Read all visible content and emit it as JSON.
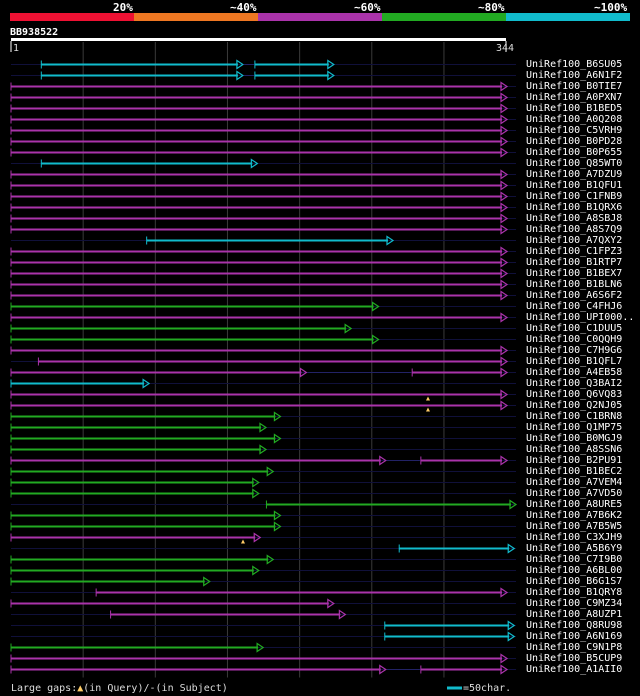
{
  "legend": {
    "scale_labels": [
      "20%",
      "~40%",
      "~60%",
      "~80%",
      "~100%"
    ],
    "scale_colors": [
      "#ee1133",
      "#ee7722",
      "#aa33aa",
      "#22aa22",
      "#11bbcc"
    ]
  },
  "query": {
    "id": "BB938522",
    "start": "1",
    "end": "344",
    "length": 344
  },
  "hits": [
    {
      "name": "UniRef100_B6SU05",
      "color": "#11bbcc",
      "segs": [
        [
          22,
          161
        ],
        [
          170,
          224
        ]
      ]
    },
    {
      "name": "UniRef100_A6N1F2",
      "color": "#11bbcc",
      "segs": [
        [
          22,
          161
        ],
        [
          170,
          224
        ]
      ]
    },
    {
      "name": "UniRef100_B0TIE7",
      "color": "#aa33aa",
      "segs": [
        [
          1,
          344
        ]
      ]
    },
    {
      "name": "UniRef100_A0PXN7",
      "color": "#aa33aa",
      "segs": [
        [
          1,
          344
        ]
      ]
    },
    {
      "name": "UniRef100_B1BED5",
      "color": "#aa33aa",
      "segs": [
        [
          1,
          344
        ]
      ]
    },
    {
      "name": "UniRef100_A0Q208",
      "color": "#aa33aa",
      "segs": [
        [
          1,
          344
        ]
      ]
    },
    {
      "name": "UniRef100_C5VRH9",
      "color": "#aa33aa",
      "segs": [
        [
          1,
          344
        ]
      ]
    },
    {
      "name": "UniRef100_B0PD28",
      "color": "#aa33aa",
      "segs": [
        [
          1,
          344
        ]
      ]
    },
    {
      "name": "UniRef100_B0P655",
      "color": "#aa33aa",
      "segs": [
        [
          1,
          344
        ]
      ]
    },
    {
      "name": "UniRef100_Q85WT0",
      "color": "#11bbcc",
      "segs": [
        [
          22,
          171
        ]
      ]
    },
    {
      "name": "UniRef100_A7DZU9",
      "color": "#aa33aa",
      "segs": [
        [
          1,
          344
        ]
      ]
    },
    {
      "name": "UniRef100_B1QFU1",
      "color": "#aa33aa",
      "segs": [
        [
          1,
          344
        ]
      ]
    },
    {
      "name": "UniRef100_C1FNB9",
      "color": "#aa33aa",
      "segs": [
        [
          1,
          344
        ]
      ]
    },
    {
      "name": "UniRef100_B1QRX6",
      "color": "#aa33aa",
      "segs": [
        [
          1,
          344
        ]
      ]
    },
    {
      "name": "UniRef100_A8SBJ8",
      "color": "#aa33aa",
      "segs": [
        [
          1,
          344
        ]
      ]
    },
    {
      "name": "UniRef100_A8S7Q9",
      "color": "#aa33aa",
      "segs": [
        [
          1,
          344
        ]
      ]
    },
    {
      "name": "UniRef100_A7QXY2",
      "color": "#11bbcc",
      "segs": [
        [
          1,
          344
        ]
      ],
      "drawSegs": [
        [
          95,
          265
        ]
      ]
    },
    {
      "name": "UniRef100_C1FPZ3",
      "color": "#aa33aa",
      "segs": [
        [
          1,
          344
        ]
      ]
    },
    {
      "name": "UniRef100_B1RTP7",
      "color": "#aa33aa",
      "segs": [
        [
          1,
          344
        ]
      ]
    },
    {
      "name": "UniRef100_B1BEX7",
      "color": "#aa33aa",
      "segs": [
        [
          1,
          344
        ]
      ]
    },
    {
      "name": "UniRef100_B1BLN6",
      "color": "#aa33aa",
      "segs": [
        [
          1,
          344
        ]
      ]
    },
    {
      "name": "UniRef100_A6S6F2",
      "color": "#aa33aa",
      "segs": [
        [
          1,
          344
        ]
      ]
    },
    {
      "name": "UniRef100_C4FHJ6",
      "color": "#22aa22",
      "segs": [
        [
          1,
          255
        ]
      ]
    },
    {
      "name": "UniRef100_UPI000..",
      "color": "#aa33aa",
      "segs": [
        [
          1,
          344
        ]
      ]
    },
    {
      "name": "UniRef100_C1DUU5",
      "color": "#22aa22",
      "segs": [
        [
          1,
          236
        ]
      ]
    },
    {
      "name": "UniRef100_C0QQH9",
      "color": "#22aa22",
      "segs": [
        [
          1,
          255
        ]
      ]
    },
    {
      "name": "UniRef100_C7H9G6",
      "color": "#aa33aa",
      "segs": [
        [
          1,
          344
        ]
      ]
    },
    {
      "name": "UniRef100_B1QFL7",
      "color": "#aa33aa",
      "segs": [
        [
          20,
          344
        ]
      ]
    },
    {
      "name": "UniRef100_A4EB58",
      "color": "#aa33aa",
      "segs": [
        [
          1,
          205
        ],
        [
          279,
          344
        ]
      ]
    },
    {
      "name": "UniRef100_Q3BAI2",
      "color": "#11bbcc",
      "segs": [
        [
          1,
          96
        ]
      ]
    },
    {
      "name": "UniRef100_Q6VQ83",
      "color": "#aa33aa",
      "segs": [
        [
          1,
          344
        ]
      ]
    },
    {
      "name": "UniRef100_Q2NJ05",
      "color": "#aa33aa",
      "segs": [
        [
          1,
          344
        ]
      ]
    },
    {
      "name": "UniRef100_C1BRN8",
      "color": "#22aa22",
      "segs": [
        [
          1,
          187
        ]
      ]
    },
    {
      "name": "UniRef100_Q1MP75",
      "color": "#22aa22",
      "segs": [
        [
          1,
          177
        ]
      ]
    },
    {
      "name": "UniRef100_B0MGJ9",
      "color": "#22aa22",
      "segs": [
        [
          1,
          187
        ]
      ]
    },
    {
      "name": "UniRef100_A8SSN6",
      "color": "#22aa22",
      "segs": [
        [
          1,
          177
        ]
      ]
    },
    {
      "name": "UniRef100_B2PU91",
      "color": "#aa33aa",
      "segs": [
        [
          1,
          260
        ],
        [
          285,
          344
        ]
      ]
    },
    {
      "name": "UniRef100_B1BEC2",
      "color": "#22aa22",
      "segs": [
        [
          1,
          182
        ]
      ]
    },
    {
      "name": "UniRef100_A7VEM4",
      "color": "#22aa22",
      "segs": [
        [
          1,
          172
        ]
      ]
    },
    {
      "name": "UniRef100_A7VD50",
      "color": "#22aa22",
      "segs": [
        [
          1,
          172
        ]
      ]
    },
    {
      "name": "UniRef100_A8URE5",
      "color": "#22aa22",
      "segs": [
        [
          178,
          353
        ]
      ]
    },
    {
      "name": "UniRef100_A7B6K2",
      "color": "#22aa22",
      "segs": [
        [
          1,
          187
        ]
      ]
    },
    {
      "name": "UniRef100_A7B5W5",
      "color": "#22aa22",
      "segs": [
        [
          1,
          187
        ]
      ]
    },
    {
      "name": "UniRef100_C3XJH9",
      "color": "#aa33aa",
      "segs": [
        [
          1,
          173
        ]
      ]
    },
    {
      "name": "UniRef100_A5B6Y9",
      "color": "#11bbcc",
      "segs": [
        [
          270,
          349
        ]
      ]
    },
    {
      "name": "UniRef100_C7I9B0",
      "color": "#22aa22",
      "segs": [
        [
          1,
          182
        ]
      ]
    },
    {
      "name": "UniRef100_A6BL00",
      "color": "#22aa22",
      "segs": [
        [
          1,
          172
        ]
      ]
    },
    {
      "name": "UniRef100_B6G1S7",
      "color": "#22aa22",
      "segs": [
        [
          1,
          138
        ]
      ]
    },
    {
      "name": "UniRef100_B1QRY8",
      "color": "#aa33aa",
      "segs": [
        [
          60,
          344
        ]
      ]
    },
    {
      "name": "UniRef100_C9MZ34",
      "color": "#aa33aa",
      "segs": [
        [
          1,
          224
        ]
      ]
    },
    {
      "name": "UniRef100_A8UZP1",
      "color": "#aa33aa",
      "segs": [
        [
          70,
          232
        ]
      ]
    },
    {
      "name": "UniRef100_Q8RU98",
      "color": "#11bbcc",
      "segs": [
        [
          260,
          349
        ]
      ]
    },
    {
      "name": "UniRef100_A6N169",
      "color": "#11bbcc",
      "segs": [
        [
          260,
          349
        ]
      ]
    },
    {
      "name": "UniRef100_C9N1P8",
      "color": "#22aa22",
      "segs": [
        [
          1,
          175
        ]
      ]
    },
    {
      "name": "UniRef100_B5CUP9",
      "color": "#aa33aa",
      "segs": [
        [
          1,
          344
        ]
      ]
    },
    {
      "name": "UniRef100_A1AII0",
      "color": "#aa33aa",
      "segs": [
        [
          1,
          260
        ],
        [
          285,
          344
        ]
      ]
    }
  ],
  "footer": {
    "gaps_label": "Large gaps:",
    "in_query": "(in Query)/",
    "dash": "-",
    "in_subject": "(in Subject)",
    "scale_bar": "=50char."
  }
}
